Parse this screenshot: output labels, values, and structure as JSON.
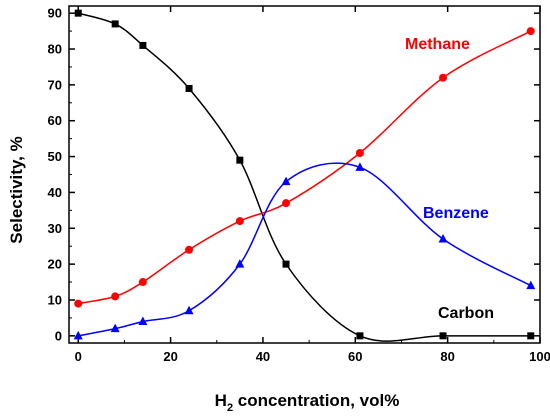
{
  "chart_data": {
    "type": "line",
    "xlabel": {
      "main": "H",
      "sub": "2",
      "rest": " concentration, vol%"
    },
    "ylabel": "Selectivity, %",
    "xlim": [
      -2,
      100
    ],
    "ylim": [
      -2,
      92
    ],
    "xticks": [
      0,
      20,
      40,
      60,
      80,
      100
    ],
    "yticks": [
      0,
      10,
      20,
      30,
      40,
      50,
      60,
      70,
      80,
      90
    ],
    "grid": false,
    "series": [
      {
        "name": "Carbon",
        "color": "#000000",
        "marker": "square",
        "x": [
          0,
          8,
          14,
          24,
          35,
          45,
          61,
          79,
          98
        ],
        "y": [
          90,
          87,
          81,
          69,
          49,
          20,
          0,
          0,
          0
        ]
      },
      {
        "name": "Methane",
        "color": "#ff0000",
        "marker": "circle",
        "x": [
          0,
          8,
          14,
          24,
          35,
          45,
          61,
          79,
          98
        ],
        "y": [
          9,
          11,
          15,
          24,
          32,
          37,
          51,
          72,
          85
        ]
      },
      {
        "name": "Benzene",
        "color": "#0000ff",
        "marker": "triangle",
        "x": [
          0,
          8,
          14,
          24,
          35,
          45,
          61,
          79,
          98
        ],
        "y": [
          0,
          2,
          4,
          7,
          20,
          43,
          47,
          27,
          14
        ]
      }
    ]
  }
}
